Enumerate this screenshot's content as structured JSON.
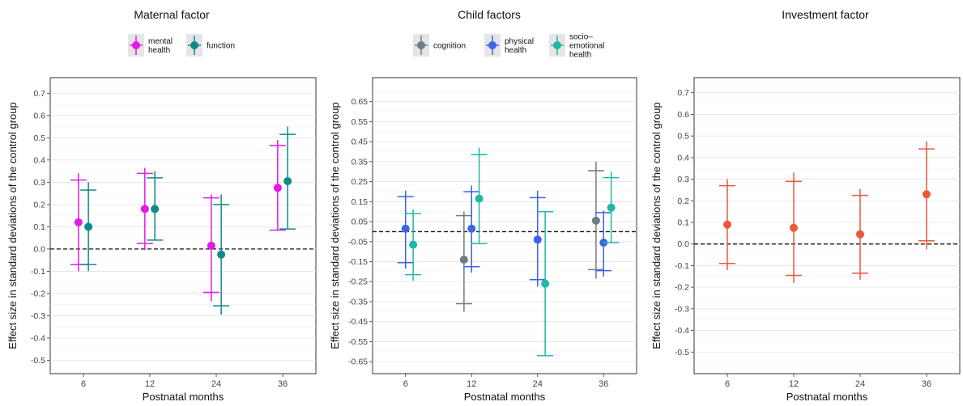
{
  "panels": [
    {
      "title": "Maternal factor",
      "xlabel": "Postnatal months",
      "ylabel": "Effect size in standard deviations of the control group",
      "categories": [
        "6",
        "12",
        "24",
        "36"
      ],
      "ylim": [
        -0.56,
        0.77
      ],
      "yticks": [
        -0.5,
        -0.4,
        -0.3,
        -0.2,
        -0.1,
        0.0,
        0.1,
        0.2,
        0.3,
        0.4,
        0.5,
        0.6,
        0.7
      ],
      "ytick_labels": [
        "-0.5",
        "-0.4",
        "-0.3",
        "-0.2",
        "-0.1",
        "0.0",
        "0.1",
        "0.2",
        "0.3",
        "0.4",
        "0.5",
        "0.6",
        "0.7"
      ],
      "legend": [
        {
          "lines": [
            "mental",
            "health"
          ],
          "color": "#E31BE3"
        },
        {
          "lines": [
            "function"
          ],
          "color": "#0E8A8A"
        }
      ],
      "series": [
        {
          "color": "#E31BE3",
          "points": [
            {
              "x": "6",
              "y": 0.12,
              "low": -0.1,
              "high": 0.34,
              "cap_low": -0.07,
              "cap_high": 0.31
            },
            {
              "x": "12",
              "y": 0.18,
              "low": -0.005,
              "high": 0.365,
              "cap_low": 0.025,
              "cap_high": 0.34
            },
            {
              "x": "24",
              "y": 0.015,
              "low": -0.235,
              "high": 0.245,
              "cap_low": -0.195,
              "cap_high": 0.23
            },
            {
              "x": "36",
              "y": 0.275,
              "low": 0.085,
              "high": 0.49,
              "cap_low": 0.085,
              "cap_high": 0.465
            }
          ]
        },
        {
          "color": "#0E8A8A",
          "points": [
            {
              "x": "6",
              "y": 0.1,
              "low": -0.1,
              "high": 0.3,
              "cap_low": -0.07,
              "cap_high": 0.265
            },
            {
              "x": "12",
              "y": 0.18,
              "low": 0.04,
              "high": 0.35,
              "cap_low": 0.04,
              "cap_high": 0.32
            },
            {
              "x": "24",
              "y": -0.025,
              "low": -0.295,
              "high": 0.245,
              "cap_low": -0.255,
              "cap_high": 0.2
            },
            {
              "x": "36",
              "y": 0.305,
              "low": 0.09,
              "high": 0.55,
              "cap_low": 0.09,
              "cap_high": 0.515
            }
          ]
        }
      ]
    },
    {
      "title": "Child factors",
      "xlabel": "Postnatal months",
      "ylabel": "Effect size in standard deviations of the control group",
      "categories": [
        "6",
        "12",
        "24",
        "36"
      ],
      "ylim": [
        -0.71,
        0.77
      ],
      "yticks": [
        -0.65,
        -0.55,
        -0.45,
        -0.35,
        -0.25,
        -0.15,
        -0.05,
        0.05,
        0.15,
        0.25,
        0.35,
        0.45,
        0.55,
        0.65
      ],
      "ytick_labels": [
        "-0.65",
        "-0.55",
        "-0.45",
        "-0.35",
        "-0.25",
        "-0.15",
        "-0.05",
        "0.05",
        "0.15",
        "0.25",
        "0.35",
        "0.45",
        "0.55",
        "0.65"
      ],
      "legend": [
        {
          "lines": [
            "cognition"
          ],
          "color": "#6E7B85"
        },
        {
          "lines": [
            "physical",
            "health"
          ],
          "color": "#3D63E6"
        },
        {
          "lines": [
            "socio–",
            "emotional",
            "health"
          ],
          "color": "#1FB8A5"
        }
      ],
      "series": [
        {
          "color": "#6E7B85",
          "points": [
            {
              "x": "12",
              "y": -0.14,
              "low": -0.4,
              "high": 0.1,
              "cap_low": -0.36,
              "cap_high": 0.08
            },
            {
              "x": "36",
              "y": 0.055,
              "low": -0.235,
              "high": 0.35,
              "cap_low": -0.19,
              "cap_high": 0.305
            }
          ]
        },
        {
          "color": "#3D63E6",
          "points": [
            {
              "x": "6",
              "y": 0.015,
              "low": -0.185,
              "high": 0.205,
              "cap_low": -0.155,
              "cap_high": 0.175
            },
            {
              "x": "12",
              "y": 0.015,
              "low": -0.205,
              "high": 0.23,
              "cap_low": -0.175,
              "cap_high": 0.2
            },
            {
              "x": "24",
              "y": -0.04,
              "low": -0.275,
              "high": 0.205,
              "cap_low": -0.24,
              "cap_high": 0.17
            },
            {
              "x": "36",
              "y": -0.055,
              "low": -0.225,
              "high": 0.105,
              "cap_low": -0.195,
              "cap_high": 0.095
            }
          ]
        },
        {
          "color": "#1FB8A5",
          "points": [
            {
              "x": "6",
              "y": -0.065,
              "low": -0.245,
              "high": 0.11,
              "cap_low": -0.215,
              "cap_high": 0.09
            },
            {
              "x": "12",
              "y": 0.165,
              "low": -0.06,
              "high": 0.42,
              "cap_low": -0.06,
              "cap_high": 0.385
            },
            {
              "x": "24",
              "y": -0.26,
              "low": -0.62,
              "high": 0.1,
              "cap_low": -0.62,
              "cap_high": 0.1
            },
            {
              "x": "36",
              "y": 0.12,
              "low": -0.055,
              "high": 0.3,
              "cap_low": -0.055,
              "cap_high": 0.27
            }
          ]
        }
      ]
    },
    {
      "title": "Investment factor",
      "xlabel": "Postnatal months",
      "ylabel": "Effect size in standard deviations of the control group",
      "categories": [
        "6",
        "12",
        "24",
        "36"
      ],
      "ylim": [
        -0.6,
        0.77
      ],
      "yticks": [
        -0.5,
        -0.4,
        -0.3,
        -0.2,
        -0.1,
        0.0,
        0.1,
        0.2,
        0.3,
        0.4,
        0.5,
        0.6,
        0.7
      ],
      "ytick_labels": [
        "-0.5",
        "-0.4",
        "-0.3",
        "-0.2",
        "-0.1",
        "0.0",
        "0.1",
        "0.2",
        "0.3",
        "0.4",
        "0.5",
        "0.6",
        "0.7"
      ],
      "legend": [],
      "series": [
        {
          "color": "#E8593B",
          "points": [
            {
              "x": "6",
              "y": 0.09,
              "low": -0.12,
              "high": 0.3,
              "cap_low": -0.09,
              "cap_high": 0.27
            },
            {
              "x": "12",
              "y": 0.075,
              "low": -0.18,
              "high": 0.33,
              "cap_low": -0.145,
              "cap_high": 0.29
            },
            {
              "x": "24",
              "y": 0.045,
              "low": -0.165,
              "high": 0.255,
              "cap_low": -0.135,
              "cap_high": 0.225
            },
            {
              "x": "36",
              "y": 0.23,
              "low": -0.025,
              "high": 0.475,
              "cap_low": 0.015,
              "cap_high": 0.44
            }
          ]
        }
      ]
    }
  ]
}
